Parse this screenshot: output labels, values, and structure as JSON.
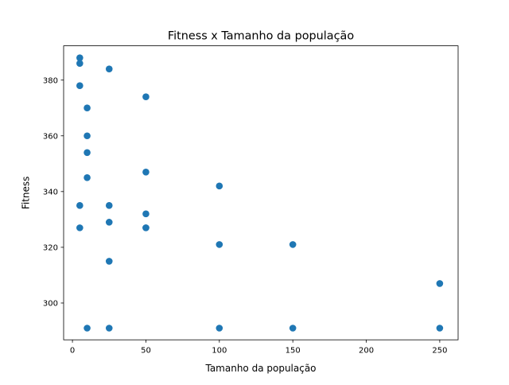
{
  "chart_data": {
    "type": "scatter",
    "title": "Fitness x Tamanho da população",
    "xlabel": "Tamanho da população",
    "ylabel": "Fitness",
    "xlim": [
      -6,
      262.5
    ],
    "ylim": [
      286.8,
      392.3
    ],
    "xticks": [
      0,
      50,
      100,
      150,
      200,
      250
    ],
    "yticks": [
      300,
      320,
      340,
      360,
      380
    ],
    "grid": false,
    "legend": "none",
    "marker_color": "#1f77b4",
    "series": [
      {
        "x": [
          5,
          5,
          5,
          5,
          5,
          10,
          10,
          10,
          10,
          10,
          25,
          25,
          25,
          25,
          25,
          50,
          50,
          50,
          50,
          50,
          100,
          100,
          100,
          150,
          150,
          250,
          250
        ],
        "y": [
          388,
          386,
          378,
          335,
          327,
          370,
          360,
          354,
          345,
          291,
          384,
          335,
          329,
          315,
          291,
          374,
          347,
          332,
          327,
          327,
          342,
          321,
          291,
          321,
          291,
          307,
          291
        ]
      }
    ]
  }
}
